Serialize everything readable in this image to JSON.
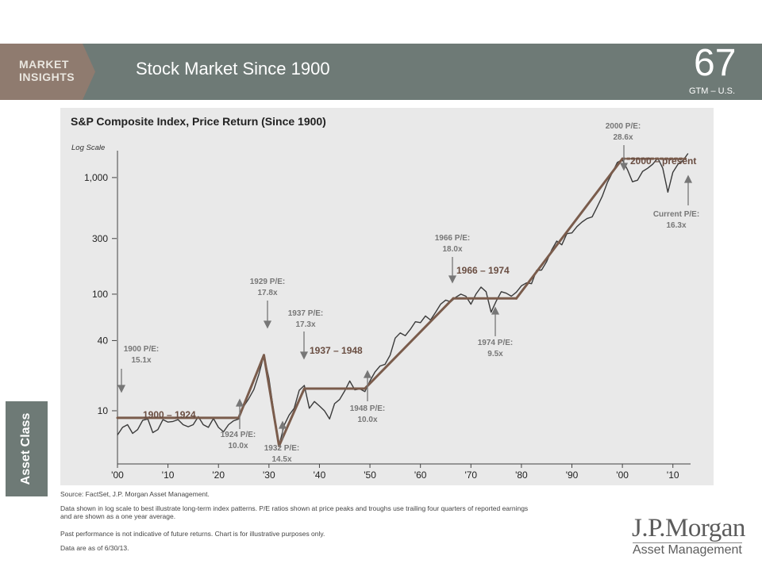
{
  "header": {
    "brand_line1": "MARKET",
    "brand_line2": "INSIGHTS",
    "title": "Stock Market Since 1900",
    "page_number": "67",
    "subtitle": "GTM – U.S."
  },
  "side_tab": {
    "label": "Asset Class"
  },
  "footer": {
    "source": "Source: FactSet, J.P. Morgan Asset Management.",
    "note1": "Data shown in log scale to best illustrate long-term index patterns. P/E ratios shown at price peaks and troughs use trailing four quarters of reported earnings and are shown as a one year average.",
    "note2": "Past performance is not indicative of future returns. Chart is for illustrative purposes only.",
    "note3": "Data are as of 6/30/13."
  },
  "logo": {
    "name": "J.P.Morgan",
    "tagline": "Asset Management"
  },
  "colors": {
    "header_bar": "#6e7a76",
    "panel": "#e9e9e9",
    "trend": "#7a5c4c",
    "series": "#3a3a3a"
  },
  "chart_data": {
    "type": "line",
    "title": "S&P Composite Index, Price Return (Since 1900)",
    "ylabel": "Log Scale",
    "yscale": "log",
    "ylim": [
      3.5,
      1700
    ],
    "xlim": [
      1900,
      2013.5
    ],
    "yticks": [
      {
        "value": 10,
        "label": "10"
      },
      {
        "value": 40,
        "label": "40"
      },
      {
        "value": 100,
        "label": "100"
      },
      {
        "value": 300,
        "label": "300"
      },
      {
        "value": 1000,
        "label": "1,000"
      }
    ],
    "xticks": [
      {
        "value": 1900,
        "label": "'00"
      },
      {
        "value": 1910,
        "label": "'10"
      },
      {
        "value": 1920,
        "label": "'20"
      },
      {
        "value": 1930,
        "label": "'30"
      },
      {
        "value": 1940,
        "label": "'40"
      },
      {
        "value": 1950,
        "label": "'50"
      },
      {
        "value": 1960,
        "label": "'60"
      },
      {
        "value": 1970,
        "label": "'70"
      },
      {
        "value": 1980,
        "label": "'80"
      },
      {
        "value": 1990,
        "label": "'90"
      },
      {
        "value": 2000,
        "label": "'00"
      },
      {
        "value": 2010,
        "label": "'10"
      }
    ],
    "series": [
      {
        "x": [
          1900,
          1901,
          1902,
          1903,
          1904,
          1905,
          1906,
          1907,
          1908,
          1909,
          1910,
          1911,
          1912,
          1913,
          1914,
          1915,
          1916,
          1917,
          1918,
          1919,
          1920,
          1921,
          1922,
          1923,
          1924,
          1925,
          1926,
          1927,
          1928,
          1929,
          1930,
          1931,
          1932,
          1933,
          1934,
          1935,
          1936,
          1937,
          1938,
          1939,
          1940,
          1941,
          1942,
          1943,
          1944,
          1945,
          1946,
          1947,
          1948,
          1949,
          1950,
          1951,
          1952,
          1953,
          1954,
          1955,
          1956,
          1957,
          1958,
          1959,
          1960,
          1961,
          1962,
          1963,
          1964,
          1965,
          1966,
          1967,
          1968,
          1969,
          1970,
          1971,
          1972,
          1973,
          1974,
          1975,
          1976,
          1977,
          1978,
          1979,
          1980,
          1981,
          1982,
          1983,
          1984,
          1985,
          1986,
          1987,
          1988,
          1989,
          1990,
          1991,
          1992,
          1993,
          1994,
          1995,
          1996,
          1997,
          1998,
          1999,
          2000,
          2001,
          2002,
          2003,
          2004,
          2005,
          2006,
          2007,
          2008,
          2009,
          2010,
          2011,
          2012,
          2013
        ],
        "y": [
          6.2,
          7.2,
          7.6,
          6.4,
          6.9,
          8.3,
          8.5,
          6.5,
          6.9,
          8.4,
          8.0,
          8.1,
          8.4,
          7.6,
          7.3,
          7.6,
          8.9,
          7.6,
          7.2,
          8.6,
          7.2,
          6.6,
          7.6,
          8.2,
          8.5,
          10.9,
          12.7,
          15.2,
          20.5,
          30.0,
          19.0,
          9.5,
          5.0,
          7.5,
          9.2,
          10.5,
          15.0,
          16.5,
          10.5,
          12.0,
          11.0,
          10.0,
          8.5,
          11.5,
          12.5,
          14.8,
          18.0,
          15.1,
          15.4,
          14.6,
          18.0,
          21.5,
          24.2,
          25.0,
          30.0,
          42.0,
          46.5,
          44.0,
          50.0,
          58.0,
          57.0,
          65.0,
          60.0,
          70.0,
          82.0,
          89.0,
          86.0,
          94.0,
          100.0,
          96.0,
          82.0,
          100.0,
          115.0,
          105.0,
          70.0,
          87.0,
          105.0,
          102.0,
          96.0,
          104.0,
          118.0,
          125.0,
          123.0,
          160.0,
          161.0,
          190.0,
          240.0,
          285.0,
          265.0,
          330.0,
          335.0,
          380.0,
          415.0,
          445.0,
          460.0,
          560.0,
          690.0,
          900.0,
          1100.0,
          1350.0,
          1420.0,
          1170.0,
          920.0,
          950.0,
          1130.0,
          1200.0,
          1300.0,
          1470.0,
          1200.0,
          750.0,
          1110.0,
          1300.0,
          1400.0,
          1610.0
        ]
      }
    ],
    "annotations": {
      "periods": [
        {
          "label": "1900 – 1924",
          "x0": 1900,
          "y0": 8.7,
          "x1": 1924,
          "y1": 8.7
        },
        {
          "label": "1937 – 1948",
          "x0": 1937,
          "y0": 15.5,
          "x1": 1949,
          "y1": 15.5
        },
        {
          "label": "1966 – 1974",
          "x0": 1966.5,
          "y0": 92,
          "x1": 1979,
          "y1": 92
        },
        {
          "label": "2000 – present",
          "x0": 2000,
          "y0": 1450,
          "x1": 2012.5,
          "y1": 1450
        }
      ],
      "pe_labels": [
        {
          "line1": "1900 P/E:",
          "line2": "15.1x"
        },
        {
          "line1": "1924 P/E:",
          "line2": "10.0x"
        },
        {
          "line1": "1929 P/E:",
          "line2": "17.8x"
        },
        {
          "line1": "1932 P/E:",
          "line2": "14.5x"
        },
        {
          "line1": "1937 P/E:",
          "line2": "17.3x"
        },
        {
          "line1": "1948 P/E:",
          "line2": "10.0x"
        },
        {
          "line1": "1966 P/E:",
          "line2": "18.0x"
        },
        {
          "line1": "1974 P/E:",
          "line2": "9.5x"
        },
        {
          "line1": "2000 P/E:",
          "line2": "28.6x"
        },
        {
          "line1": "Current P/E:",
          "line2": "16.3x"
        }
      ]
    }
  }
}
